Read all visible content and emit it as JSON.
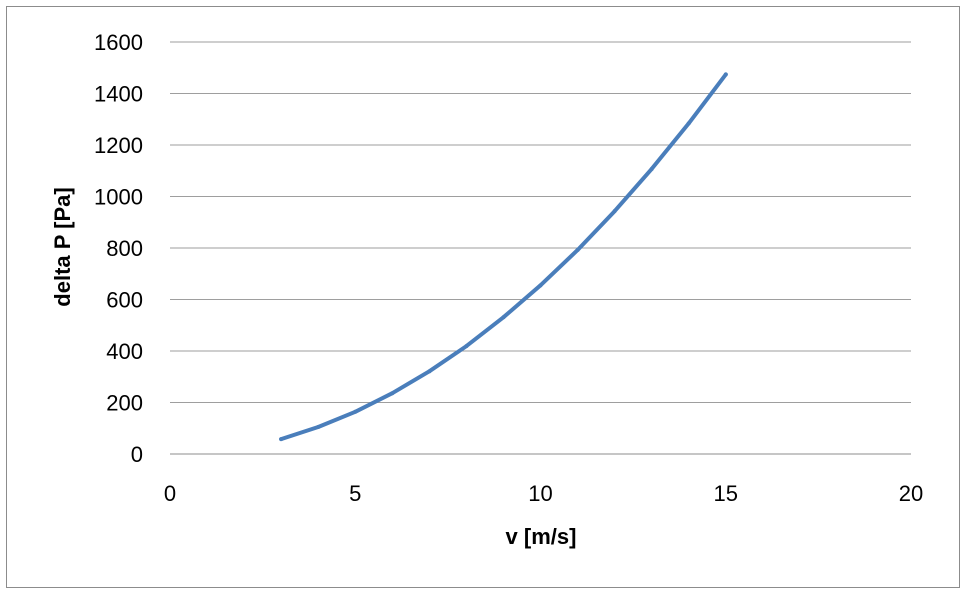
{
  "chart_data": {
    "type": "line",
    "title": "",
    "xlabel": "v [m/s]",
    "ylabel": "delta P [Pa]",
    "xlim": [
      0,
      20
    ],
    "ylim": [
      0,
      1600
    ],
    "xticks": [
      "0",
      "5",
      "10",
      "15",
      "20"
    ],
    "yticks": [
      "0",
      "200",
      "400",
      "600",
      "800",
      "1000",
      "1200",
      "1400",
      "1600"
    ],
    "grid": "horizontal",
    "legend": "none",
    "series": [
      {
        "color": "#4a7ebb",
        "x": [
          3,
          4,
          5,
          6,
          7,
          8,
          9,
          10,
          11,
          12,
          13,
          14,
          15
        ],
        "y": [
          58,
          105,
          164,
          236,
          321,
          419,
          531,
          655,
          792,
          943,
          1107,
          1284,
          1474
        ]
      }
    ]
  }
}
